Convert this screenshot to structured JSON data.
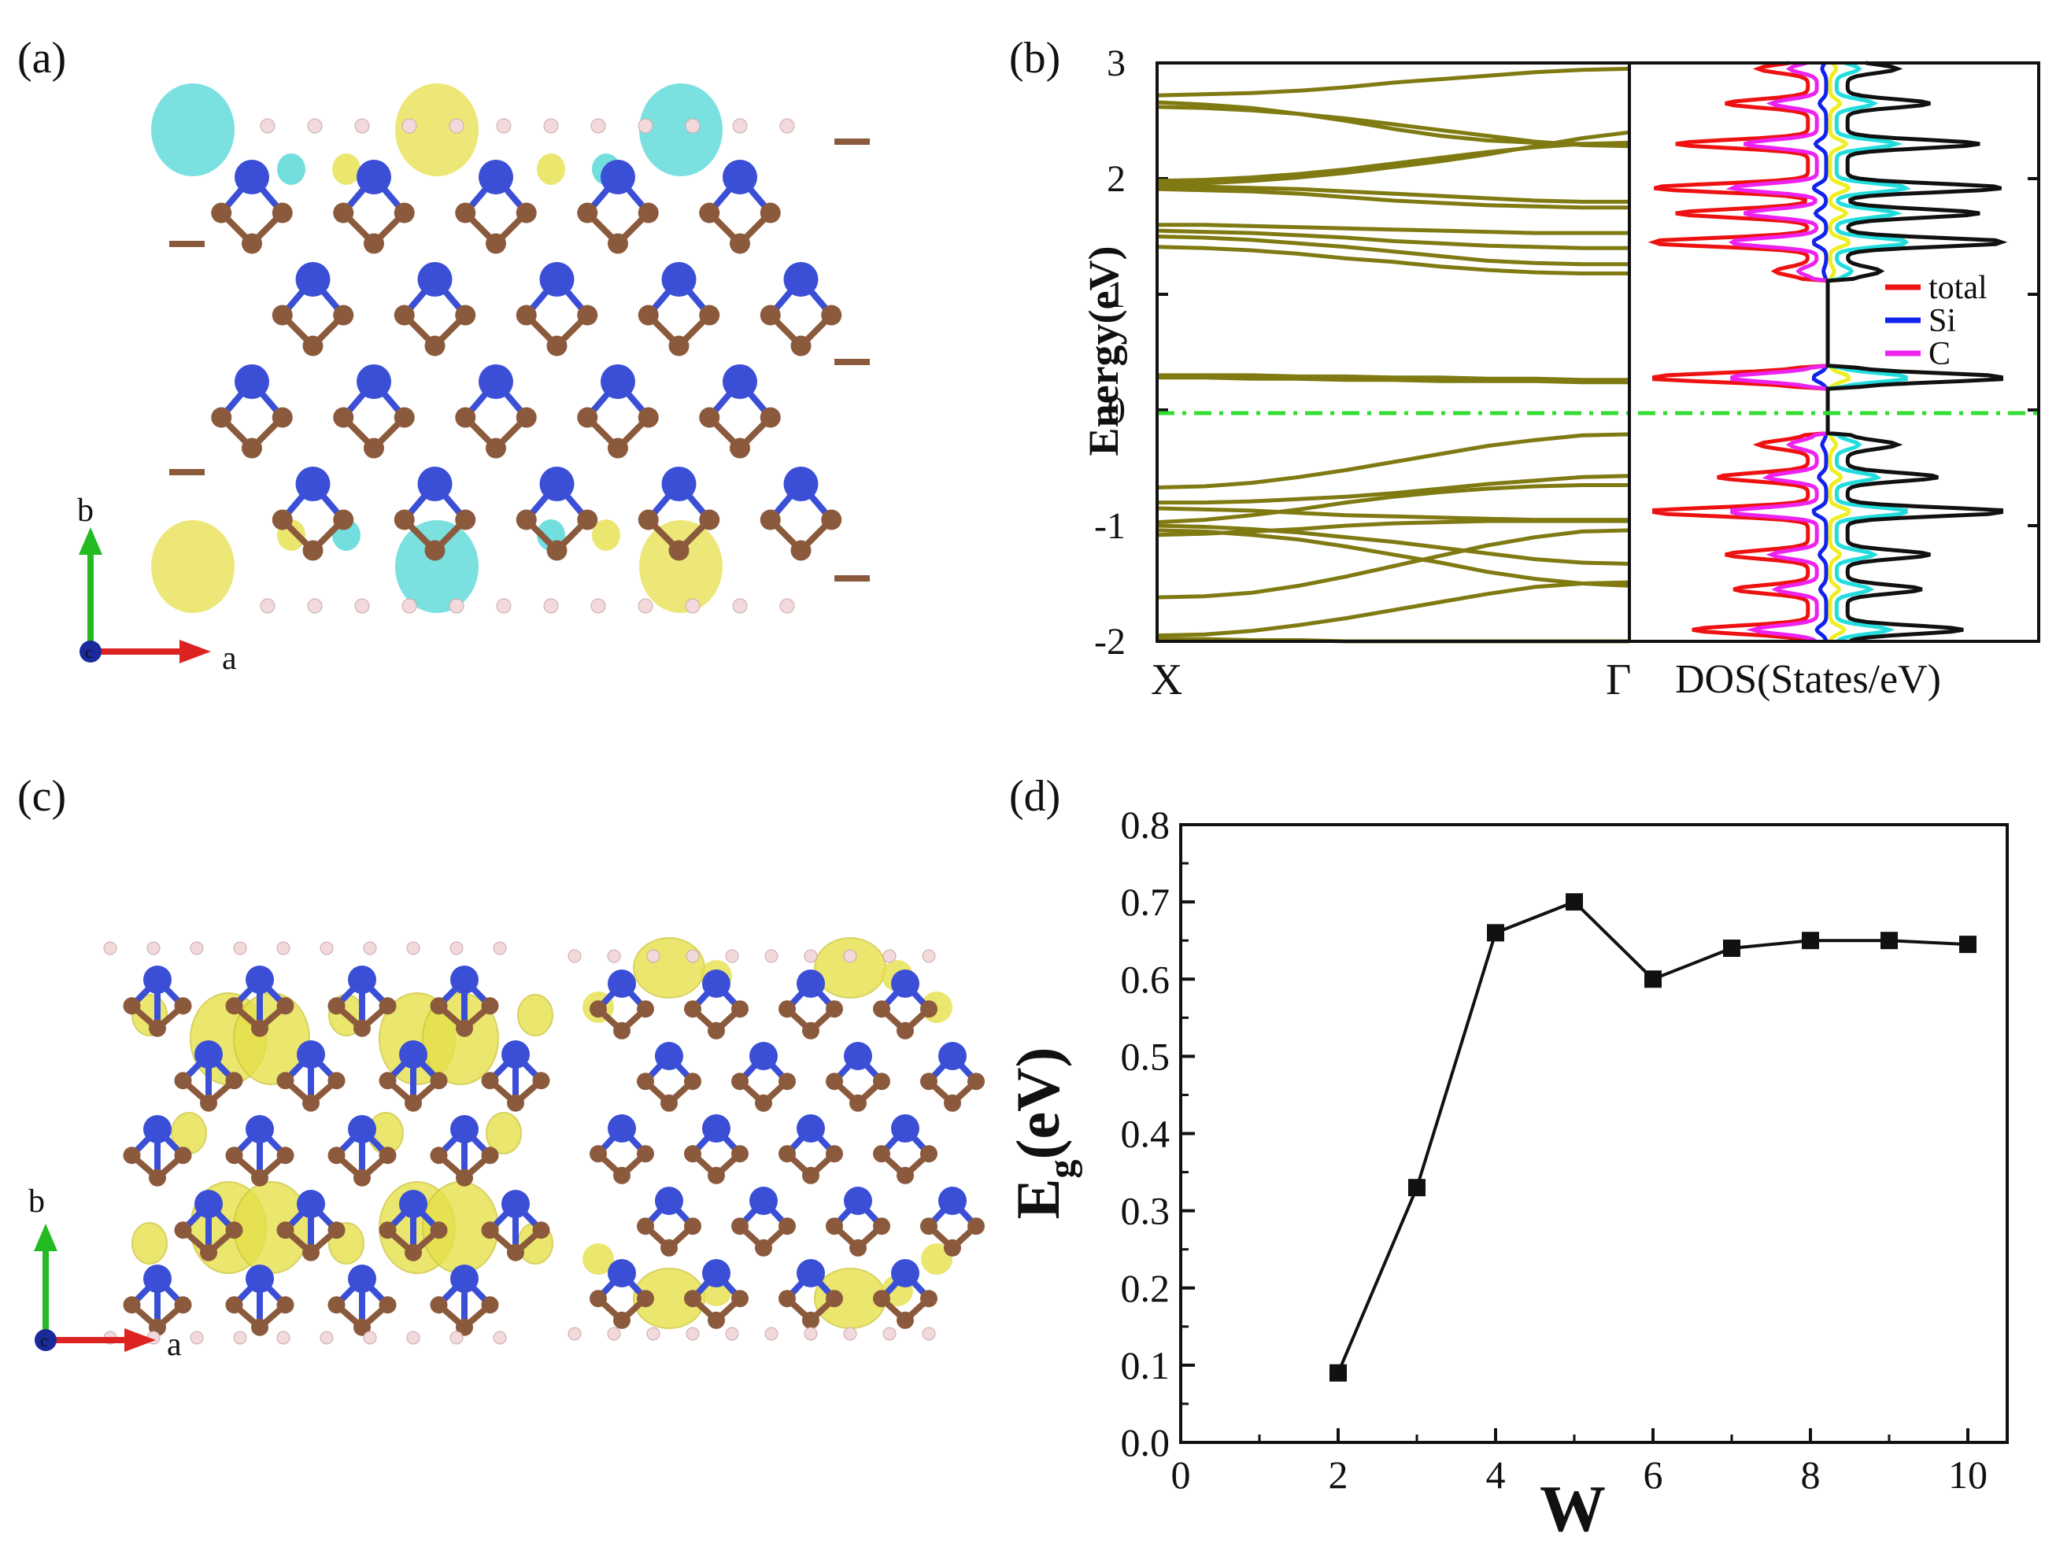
{
  "panels": {
    "a": {
      "label": "(a)",
      "axis_b": "b",
      "axis_a": "a",
      "axis_c": "c"
    },
    "b": {
      "label": "(b)"
    },
    "c": {
      "label": "(c)",
      "axis_b": "b",
      "axis_a": "a",
      "axis_c": "c"
    },
    "d": {
      "label": "(d)"
    }
  },
  "colors": {
    "silicon": "#3a4fd6",
    "carbon": "#8b5a3c",
    "hydrogen": "#f2d9dc",
    "lobe_yellow": "#e6e04a",
    "lobe_cyan": "#4fd6d6",
    "band": "#7f7a12",
    "fermi": "#33dd33",
    "dos_total": "#ee1111",
    "dos_si": "#1122ee",
    "dos_c": "#ee22ee",
    "dos_extra1": "#22dddd",
    "dos_extra2": "#111111",
    "dos_extra3": "#eeee22",
    "axis_b_arrow": "#22bb22",
    "axis_a_arrow": "#dd2222",
    "axis_c_dot": "#1a2a9a"
  },
  "chart_data": [
    {
      "panel": "b",
      "type": "line",
      "subtype": "band-structure",
      "ylabel": "Energy(eV)",
      "ylim": [
        -2,
        3
      ],
      "yticks": [
        "-2",
        "-1",
        "0",
        "1",
        "2",
        "3"
      ],
      "k_labels": [
        "X",
        "Γ"
      ],
      "fermi_level": 0,
      "bands": [
        [
          2.72,
          2.73,
          2.74,
          2.76,
          2.79,
          2.83,
          2.86,
          2.89,
          2.92,
          2.94,
          2.95
        ],
        [
          2.62,
          2.61,
          2.59,
          2.56,
          2.52,
          2.47,
          2.42,
          2.37,
          2.32,
          2.29,
          2.28
        ],
        [
          2.66,
          2.64,
          2.61,
          2.56,
          2.5,
          2.43,
          2.37,
          2.33,
          2.31,
          2.3,
          2.3
        ],
        [
          1.98,
          1.99,
          2.01,
          2.04,
          2.08,
          2.13,
          2.18,
          2.23,
          2.27,
          2.3,
          2.31
        ],
        [
          1.95,
          1.96,
          1.98,
          2.01,
          2.05,
          2.1,
          2.15,
          2.21,
          2.28,
          2.35,
          2.4
        ],
        [
          1.93,
          1.93,
          1.92,
          1.91,
          1.89,
          1.87,
          1.85,
          1.83,
          1.81,
          1.8,
          1.8
        ],
        [
          1.91,
          1.9,
          1.89,
          1.87,
          1.84,
          1.81,
          1.79,
          1.77,
          1.76,
          1.75,
          1.75
        ],
        [
          1.6,
          1.6,
          1.59,
          1.58,
          1.57,
          1.56,
          1.55,
          1.54,
          1.53,
          1.53,
          1.53
        ],
        [
          1.55,
          1.54,
          1.53,
          1.51,
          1.49,
          1.46,
          1.44,
          1.42,
          1.41,
          1.4,
          1.4
        ],
        [
          1.5,
          1.49,
          1.47,
          1.44,
          1.41,
          1.37,
          1.33,
          1.29,
          1.27,
          1.26,
          1.26
        ],
        [
          1.41,
          1.4,
          1.38,
          1.35,
          1.31,
          1.28,
          1.24,
          1.21,
          1.19,
          1.18,
          1.18
        ],
        [
          0.3,
          0.3,
          0.3,
          0.29,
          0.29,
          0.28,
          0.28,
          0.27,
          0.27,
          0.26,
          0.26
        ],
        [
          0.28,
          0.28,
          0.27,
          0.27,
          0.26,
          0.26,
          0.25,
          0.25,
          0.25,
          0.24,
          0.24
        ],
        [
          -0.67,
          -0.66,
          -0.63,
          -0.58,
          -0.52,
          -0.45,
          -0.38,
          -0.31,
          -0.26,
          -0.22,
          -0.21
        ],
        [
          -0.8,
          -0.8,
          -0.79,
          -0.77,
          -0.75,
          -0.72,
          -0.68,
          -0.64,
          -0.61,
          -0.58,
          -0.57
        ],
        [
          -0.85,
          -0.86,
          -0.87,
          -0.89,
          -0.91,
          -0.92,
          -0.93,
          -0.94,
          -0.95,
          -0.95,
          -0.95
        ],
        [
          -0.97,
          -0.95,
          -0.91,
          -0.86,
          -0.8,
          -0.75,
          -0.71,
          -0.68,
          -0.66,
          -0.65,
          -0.65
        ],
        [
          -1.0,
          -1.01,
          -1.03,
          -1.06,
          -1.1,
          -1.14,
          -1.19,
          -1.24,
          -1.29,
          -1.32,
          -1.33
        ],
        [
          -1.04,
          -1.05,
          -1.08,
          -1.12,
          -1.18,
          -1.25,
          -1.32,
          -1.4,
          -1.46,
          -1.5,
          -1.52
        ],
        [
          -1.08,
          -1.07,
          -1.05,
          -1.03,
          -1.0,
          -0.98,
          -0.97,
          -0.96,
          -0.96,
          -0.96,
          -0.96
        ],
        [
          -1.62,
          -1.61,
          -1.58,
          -1.52,
          -1.44,
          -1.35,
          -1.26,
          -1.17,
          -1.1,
          -1.05,
          -1.04
        ],
        [
          -1.95,
          -1.94,
          -1.91,
          -1.86,
          -1.8,
          -1.73,
          -1.66,
          -1.59,
          -1.53,
          -1.5,
          -1.49
        ],
        [
          -1.98,
          -1.98,
          -1.99,
          -1.99,
          -2.0,
          -2.0,
          -2.0,
          -2.0,
          -2.0,
          -2.0,
          -2.0
        ]
      ]
    },
    {
      "panel": "b",
      "type": "line",
      "subtype": "dos",
      "xlabel": "DOS(States/eV)",
      "ylim": [
        -2,
        3
      ],
      "legend": [
        "total",
        "Si",
        "C"
      ],
      "legend_position": "right-middle",
      "series": [
        {
          "name": "total",
          "color_key": "dos_total",
          "mirror": true
        },
        {
          "name": "Si",
          "color_key": "dos_si",
          "mirror": true
        },
        {
          "name": "C",
          "color_key": "dos_c",
          "mirror": true
        },
        {
          "color_key": "dos_extra3",
          "mirror": false
        },
        {
          "color_key": "dos_extra1",
          "mirror": false
        },
        {
          "color_key": "dos_extra2",
          "mirror": false
        }
      ],
      "peaks_ev": [
        [
          -1.9,
          0.7
        ],
        [
          -1.55,
          0.45
        ],
        [
          -1.25,
          0.5
        ],
        [
          -0.88,
          1.0
        ],
        [
          -0.58,
          0.55
        ],
        [
          -0.3,
          0.3
        ],
        [
          0.28,
          1.0
        ],
        [
          1.2,
          0.2
        ],
        [
          1.45,
          1.0
        ],
        [
          1.7,
          0.8
        ],
        [
          1.92,
          0.95
        ],
        [
          2.3,
          0.8
        ],
        [
          2.65,
          0.5
        ],
        [
          2.95,
          0.3
        ]
      ],
      "bands_ev": [
        [
          -2.0,
          -0.2
        ],
        [
          0.2,
          0.38
        ],
        [
          1.12,
          3.0
        ]
      ]
    },
    {
      "panel": "d",
      "type": "line",
      "markers": "square",
      "x": [
        2,
        3,
        4,
        5,
        6,
        7,
        8,
        9,
        10
      ],
      "y": [
        0.09,
        0.33,
        0.66,
        0.7,
        0.6,
        0.64,
        0.65,
        0.65,
        0.645
      ],
      "xlabel": "W",
      "ylabel": "E",
      "ylabel_sub": "g",
      "ylabel_unit": "(eV)",
      "xlim": [
        0,
        10.5
      ],
      "ylim": [
        0,
        0.8
      ],
      "xticks": [
        "0",
        "2",
        "4",
        "6",
        "8",
        "10"
      ],
      "yticks": [
        "0.0",
        "0.1",
        "0.2",
        "0.3",
        "0.4",
        "0.5",
        "0.6",
        "0.7",
        "0.8"
      ]
    }
  ]
}
